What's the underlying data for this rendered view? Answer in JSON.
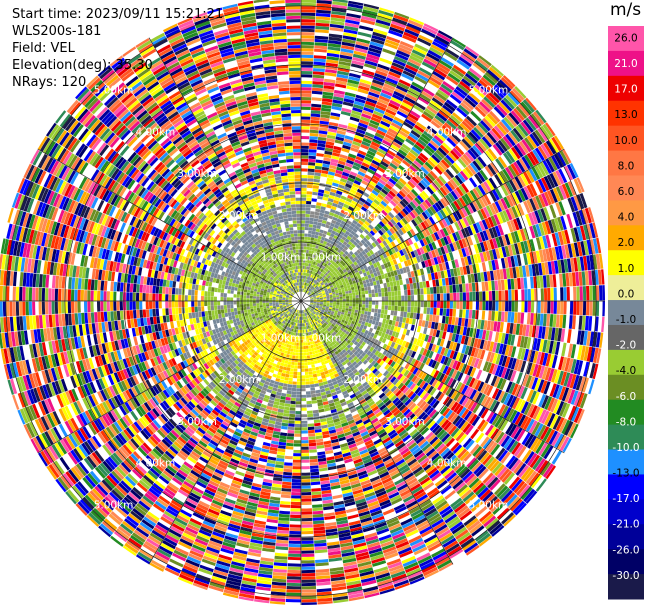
{
  "header": {
    "start_time": "Start time: 2023/09/11 15:21:21",
    "instrument": "WLS200s-181",
    "field": "Field: VEL",
    "elevation": "Elevation(deg): 35.30",
    "nrays": "NRays: 120"
  },
  "chart_data": {
    "type": "heatmap",
    "projection": "polar (PPI)",
    "field": "VEL",
    "units": "m/s",
    "n_rays": 120,
    "range_rings_km": [
      1.0,
      2.0,
      3.0,
      4.0,
      5.0
    ],
    "ring_labels": [
      "1.00km",
      "2.00km",
      "3.00km",
      "4.00km",
      "5.00km"
    ],
    "colorbar": {
      "title": "m/s",
      "range": [
        -30.0,
        30.0
      ],
      "tick_labels": [
        "26.0",
        "21.0",
        "17.0",
        "13.0",
        "10.0",
        "8.0",
        "6.0",
        "4.0",
        "2.0",
        "1.0",
        "0.0",
        "-1.0",
        "-2.0",
        "-4.0",
        "-6.0",
        "-8.0",
        "-10.0",
        "-13.0",
        "-17.0",
        "-21.0",
        "-26.0",
        "-30.0"
      ],
      "colors": [
        "#ff55aa",
        "#ee1188",
        "#ee0000",
        "#ff3300",
        "#ff5522",
        "#ff7744",
        "#ff8855",
        "#ff9944",
        "#ffaa00",
        "#ffff00",
        "#eeee99",
        "#778899",
        "#666666",
        "#99cc33",
        "#6b8e23",
        "#228b22",
        "#2e8b57",
        "#1e90ff",
        "#0000ff",
        "#0000cc",
        "#000099",
        "#000066",
        "#1a1a4a"
      ]
    },
    "pattern": {
      "near_range_green_ring_km": [
        0.5,
        1.05
      ],
      "gray_zone_km": [
        1.05,
        1.6
      ],
      "yellow_south": "approaching (yellow/positive) at azimuths ~150-240 deg",
      "far_field": "noise across full colour scale beyond ~2.1 km"
    }
  }
}
